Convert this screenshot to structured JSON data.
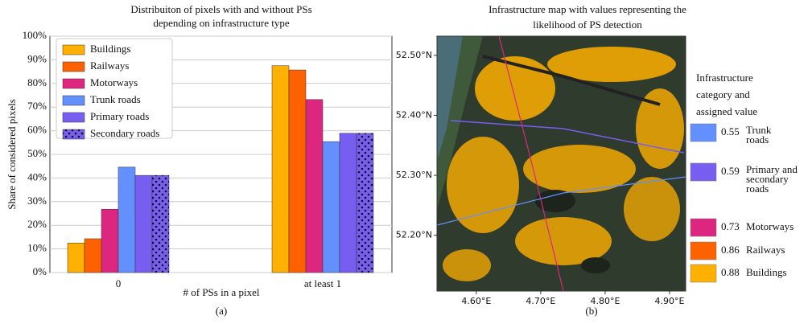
{
  "chart_data": [
    {
      "type": "bar",
      "title": [
        "Distribuiton of pixels with and without PSs",
        "depending on infrastructure type"
      ],
      "xlabel": "# of PSs in a pixel",
      "ylabel": "Share of considered pixels",
      "caption": "(a)",
      "categories": [
        "0",
        "at least 1"
      ],
      "series": [
        {
          "name": "Buildings",
          "color": "#FFB000",
          "values": [
            12.5,
            87.5
          ]
        },
        {
          "name": "Railways",
          "color": "#FE6100",
          "values": [
            14.3,
            85.7
          ]
        },
        {
          "name": "Motorways",
          "color": "#DC267F",
          "values": [
            26.8,
            73.2
          ]
        },
        {
          "name": "Trunk roads",
          "color": "#648FFF",
          "values": [
            44.6,
            55.4
          ]
        },
        {
          "name": "Primary roads",
          "color": "#785EF0",
          "values": [
            41.1,
            58.9
          ]
        },
        {
          "name": "Secondary roads",
          "color": "#785EF0",
          "pattern": "dots",
          "values": [
            41.1,
            58.9
          ]
        }
      ],
      "ylim": [
        0,
        100
      ],
      "yticks": [
        {
          "value": 0,
          "label": "0%"
        },
        {
          "value": 10,
          "label": "10%"
        },
        {
          "value": 20,
          "label": "20%"
        },
        {
          "value": 30,
          "label": "30%"
        },
        {
          "value": 40,
          "label": "40%"
        },
        {
          "value": 50,
          "label": "50%"
        },
        {
          "value": 60,
          "label": "60%"
        },
        {
          "value": 70,
          "label": "70%"
        },
        {
          "value": 80,
          "label": "80%"
        },
        {
          "value": 90,
          "label": "90%"
        },
        {
          "value": 100,
          "label": "100%"
        }
      ],
      "grid": true,
      "legend": "upper left"
    },
    {
      "type": "map",
      "title": [
        "Infrastructure map with values representing the",
        "likelihood of PS detection"
      ],
      "caption": "(b)",
      "xlim": [
        4.539,
        4.925
      ],
      "ylim": [
        52.107,
        52.532
      ],
      "xticks": [
        {
          "value": 4.6,
          "label": "4.60°E"
        },
        {
          "value": 4.7,
          "label": "4.70°E"
        },
        {
          "value": 4.8,
          "label": "4.80°E"
        },
        {
          "value": 4.9,
          "label": "4.90°E"
        }
      ],
      "yticks": [
        {
          "value": 52.2,
          "label": "52.20°N"
        },
        {
          "value": 52.3,
          "label": "52.30°N"
        },
        {
          "value": 52.4,
          "label": "52.40°N"
        },
        {
          "value": 52.5,
          "label": "52.50°N"
        }
      ],
      "legend": {
        "title": [
          "Infrastructure",
          "category and",
          "assigned value"
        ],
        "items": [
          {
            "value": 0.55,
            "label": [
              "Trunk",
              "roads"
            ],
            "color": "#648FFF"
          },
          {
            "value": 0.59,
            "label": [
              "Primary and",
              "secondary",
              "roads"
            ],
            "color": "#785EF0"
          },
          {
            "value": 0.73,
            "label": [
              "Motorways"
            ],
            "color": "#DC267F"
          },
          {
            "value": 0.86,
            "label": [
              "Railways"
            ],
            "color": "#FE6100"
          },
          {
            "value": 0.88,
            "label": [
              "Buildings"
            ],
            "color": "#FFB000"
          }
        ]
      }
    }
  ]
}
